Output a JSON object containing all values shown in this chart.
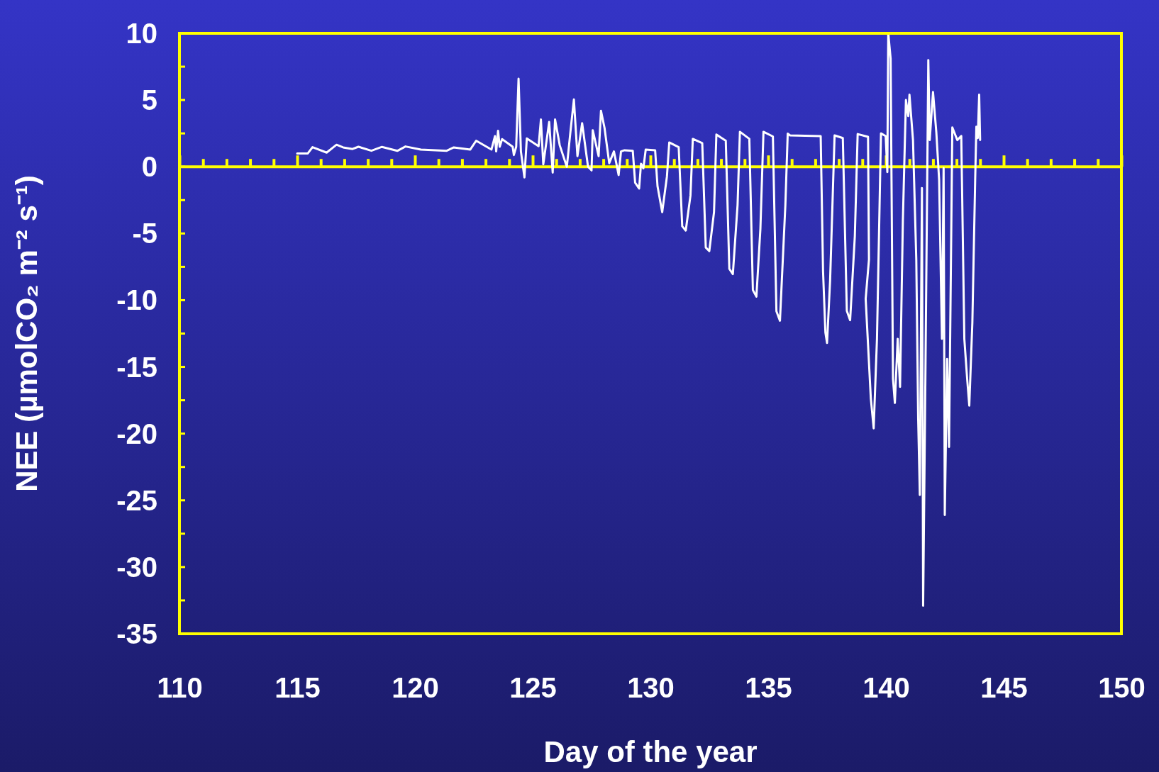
{
  "chart_data": {
    "type": "line",
    "xlabel": "Day of the year",
    "ylabel": "NEE (µmolCO₂ m⁻² s⁻¹)",
    "xlim": [
      110,
      150
    ],
    "ylim": [
      -35,
      10
    ],
    "xticks": [
      110,
      {
        "value": 111,
        "label": null
      },
      {
        "value": 112,
        "label": null
      },
      {
        "value": 113,
        "label": null
      },
      {
        "value": 114,
        "label": null
      },
      115,
      {
        "value": 116,
        "label": null
      },
      {
        "value": 117,
        "label": null
      },
      {
        "value": 118,
        "label": null
      },
      {
        "value": 119,
        "label": null
      },
      120,
      {
        "value": 121,
        "label": null
      },
      {
        "value": 122,
        "label": null
      },
      {
        "value": 123,
        "label": null
      },
      {
        "value": 124,
        "label": null
      },
      125,
      {
        "value": 126,
        "label": null
      },
      {
        "value": 127,
        "label": null
      },
      {
        "value": 128,
        "label": null
      },
      {
        "value": 129,
        "label": null
      },
      130,
      {
        "value": 131,
        "label": null
      },
      {
        "value": 132,
        "label": null
      },
      {
        "value": 133,
        "label": null
      },
      {
        "value": 134,
        "label": null
      },
      135,
      {
        "value": 136,
        "label": null
      },
      {
        "value": 137,
        "label": null
      },
      {
        "value": 138,
        "label": null
      },
      {
        "value": 139,
        "label": null
      },
      140,
      {
        "value": 141,
        "label": null
      },
      {
        "value": 142,
        "label": null
      },
      {
        "value": 143,
        "label": null
      },
      {
        "value": 144,
        "label": null
      },
      145,
      {
        "value": 146,
        "label": null
      },
      {
        "value": 147,
        "label": null
      },
      {
        "value": 148,
        "label": null
      },
      {
        "value": 149,
        "label": null
      },
      150
    ],
    "yticks": [
      -35,
      {
        "value": -32.5,
        "label": null
      },
      -30,
      {
        "value": -27.5,
        "label": null
      },
      -25,
      {
        "value": -22.5,
        "label": null
      },
      -20,
      {
        "value": -17.5,
        "label": null
      },
      -15,
      {
        "value": -12.5,
        "label": null
      },
      -10,
      {
        "value": -7.5,
        "label": null
      },
      -5,
      {
        "value": -2.5,
        "label": null
      },
      0,
      {
        "value": 2.5,
        "label": null
      },
      5,
      {
        "value": 7.5,
        "label": null
      },
      10
    ],
    "grid": false,
    "marker": "none",
    "line_style": "solid",
    "ref_lines": [
      {
        "axis": "y",
        "value": 0,
        "color": "#ffff00"
      }
    ],
    "series": [
      {
        "color": "#ffffff",
        "x": [
          115.0,
          115.45,
          115.65,
          116.25,
          116.67,
          116.95,
          117.35,
          117.6,
          118.15,
          118.6,
          119.25,
          119.6,
          120.25,
          121.35,
          121.65,
          122.35,
          122.6,
          123.25,
          123.4,
          123.45,
          123.53,
          123.6,
          123.7,
          124.15,
          124.2,
          124.3,
          124.4,
          124.5,
          124.65,
          124.75,
          125.25,
          125.35,
          125.45,
          125.7,
          125.85,
          125.95,
          126.15,
          126.45,
          126.6,
          126.75,
          126.9,
          127.1,
          127.35,
          127.5,
          127.55,
          127.8,
          127.9,
          128.05,
          128.25,
          128.45,
          128.65,
          128.75,
          128.9,
          129.25,
          129.35,
          129.52,
          129.6,
          129.7,
          129.8,
          130.2,
          130.3,
          130.5,
          130.7,
          130.8,
          131.2,
          131.35,
          131.5,
          131.7,
          131.8,
          132.2,
          132.35,
          132.5,
          132.7,
          132.8,
          133.2,
          133.35,
          133.5,
          133.7,
          133.8,
          134.2,
          134.35,
          134.5,
          134.67,
          134.8,
          135.2,
          135.35,
          135.5,
          135.73,
          135.83,
          135.93,
          137.23,
          137.33,
          137.43,
          137.5,
          137.63,
          137.82,
          138.17,
          138.34,
          138.48,
          138.68,
          138.8,
          139.24,
          139.28,
          139.14,
          139.36,
          139.48,
          139.62,
          139.79,
          139.99,
          140.06,
          140.1,
          140.2,
          140.3,
          140.38,
          140.5,
          140.6,
          140.72,
          140.85,
          140.95,
          141.0,
          141.15,
          141.29,
          141.37,
          141.44,
          141.53,
          141.58,
          141.66,
          141.8,
          141.86,
          142.0,
          142.14,
          142.26,
          142.38,
          142.45,
          142.5,
          142.6,
          142.68,
          142.82,
          143.03,
          143.2,
          143.33,
          143.45,
          143.54,
          143.67,
          143.79,
          143.84,
          143.9,
          143.96,
          144.0
        ],
        "values": [
          1.0,
          1.0,
          1.47,
          1.06,
          1.65,
          1.45,
          1.33,
          1.5,
          1.2,
          1.49,
          1.19,
          1.52,
          1.29,
          1.2,
          1.45,
          1.29,
          1.95,
          1.29,
          2.3,
          1.15,
          2.7,
          1.5,
          2.07,
          1.5,
          0.88,
          1.5,
          6.6,
          1.15,
          -0.8,
          2.12,
          1.54,
          3.54,
          0.18,
          3.36,
          -0.44,
          3.54,
          1.6,
          0,
          2.57,
          5.04,
          0.8,
          3.27,
          0,
          -0.27,
          2.74,
          0.8,
          4.19,
          2.92,
          0.27,
          1.15,
          -0.62,
          1.15,
          1.24,
          1.2,
          -1.19,
          -1.63,
          0.23,
          -0.12,
          1.29,
          1.24,
          -1.45,
          -3.4,
          -0.74,
          1.82,
          1.47,
          -4.46,
          -4.78,
          -2.16,
          2.09,
          1.77,
          -6.05,
          -6.32,
          -3.4,
          2.41,
          1.95,
          -7.65,
          -8.04,
          -2.87,
          2.62,
          2.09,
          -9.24,
          -9.73,
          -4.64,
          2.62,
          2.27,
          -10.83,
          -11.54,
          -2.87,
          2.48,
          2.35,
          2.3,
          -7.82,
          -12.42,
          -13.2,
          -8.53,
          2.35,
          2.15,
          -10.8,
          -11.5,
          -5.2,
          2.45,
          2.24,
          -6.96,
          -9.9,
          -17.4,
          -19.6,
          -12.9,
          2.5,
          2.3,
          -0.4,
          10,
          8.1,
          -15.9,
          -17.7,
          -12.9,
          -16.5,
          -4.0,
          5.0,
          3.8,
          5.4,
          2.0,
          -7.0,
          -18.9,
          -24.6,
          -1.6,
          -32.9,
          -18.9,
          8.0,
          2.0,
          5.6,
          2.6,
          -1.0,
          -12.9,
          -0.1,
          -26.1,
          -14.4,
          -21.0,
          2.95,
          2.0,
          2.3,
          -12.9,
          -15.9,
          -17.9,
          -11.7,
          -1.0,
          3.0,
          2.15,
          5.4,
          2.0
        ]
      }
    ]
  }
}
